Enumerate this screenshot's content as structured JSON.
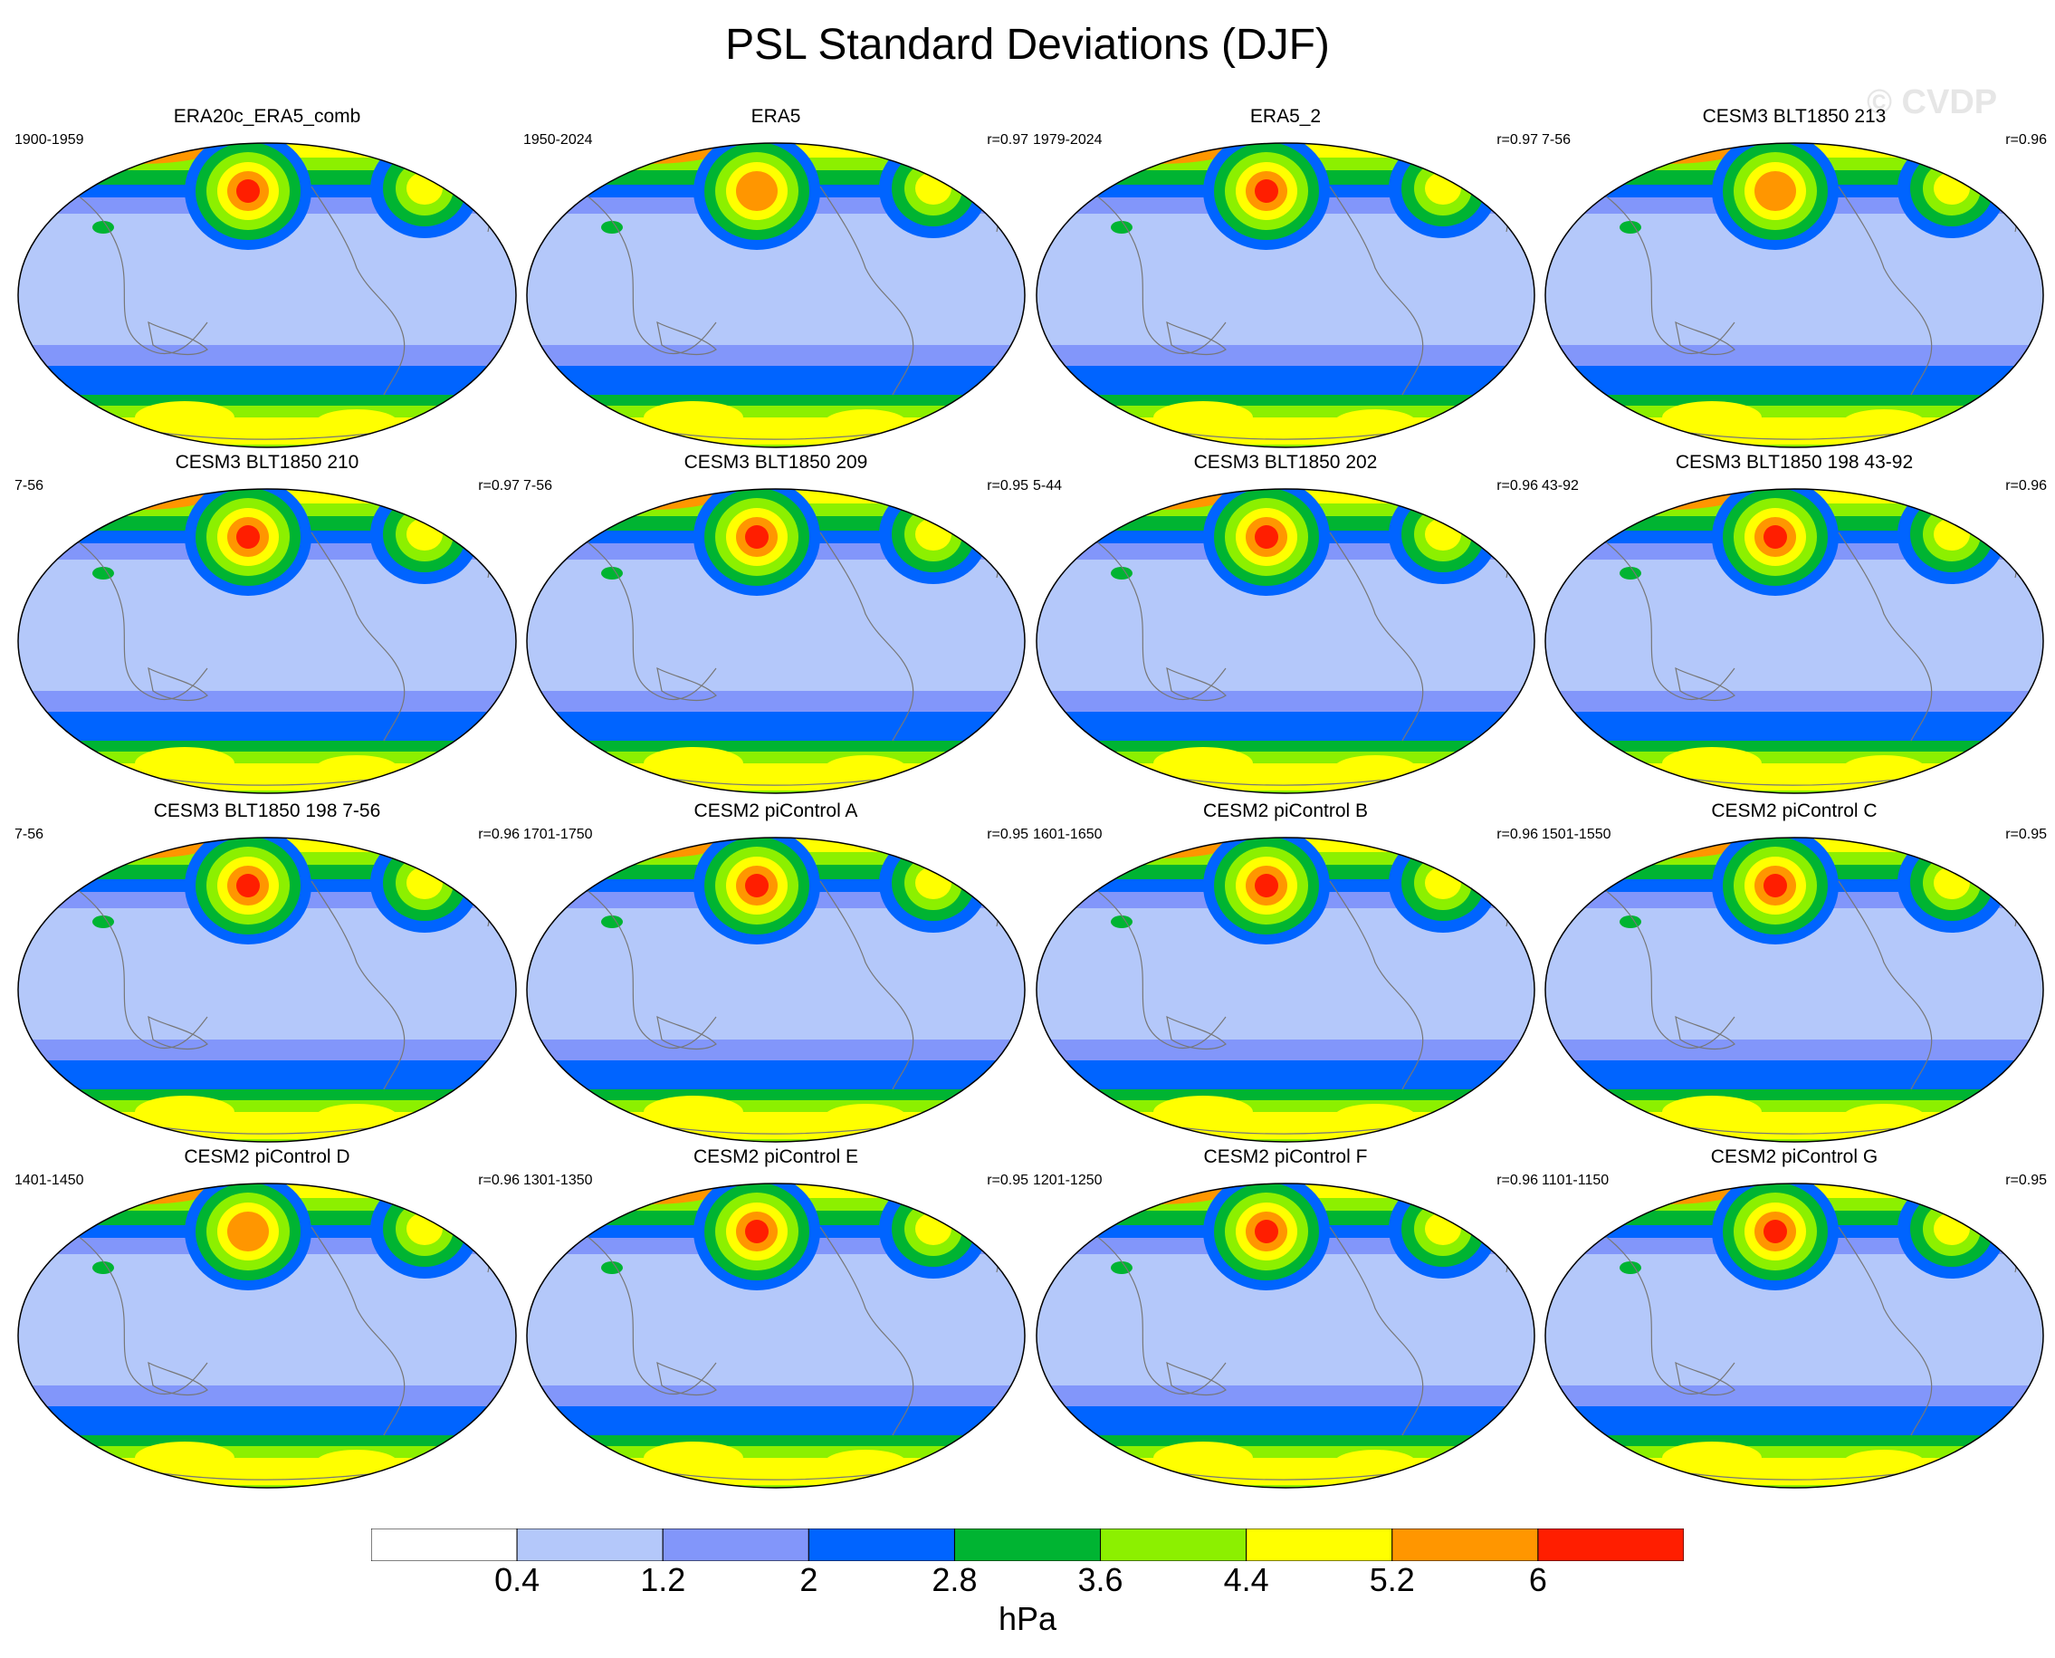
{
  "title": "PSL Standard Deviations (DJF)",
  "watermark": "© CVDP",
  "palette": [
    "#ffffff",
    "#b4c8fa",
    "#8296fa",
    "#0064ff",
    "#00b432",
    "#8cf000",
    "#ffff00",
    "#ff9600",
    "#ff1e00"
  ],
  "colorbar": {
    "levels": [
      "0.4",
      "1.2",
      "2",
      "2.8",
      "3.6",
      "4.4",
      "5.2",
      "6"
    ],
    "units": "hPa"
  },
  "panels": [
    {
      "title": "ERA20c_ERA5_comb",
      "period": "1900-1959",
      "corr": "",
      "aleut_peak": 6
    },
    {
      "title": "ERA5",
      "period": "1950-2024",
      "corr": "r=0.97",
      "aleut_peak": 5.5
    },
    {
      "title": "ERA5_2",
      "period": "1979-2024",
      "corr": "r=0.97",
      "aleut_peak": 6
    },
    {
      "title": "CESM3 BLT1850 213",
      "period": "7-56",
      "corr": "r=0.96",
      "aleut_peak": 5.5
    },
    {
      "title": "CESM3 BLT1850 210",
      "period": "7-56",
      "corr": "r=0.97",
      "aleut_peak": 6.5
    },
    {
      "title": "CESM3 BLT1850 209",
      "period": "7-56",
      "corr": "r=0.95",
      "aleut_peak": 6.5
    },
    {
      "title": "CESM3 BLT1850 202",
      "period": "5-44",
      "corr": "r=0.96",
      "aleut_peak": 7
    },
    {
      "title": "CESM3 BLT1850 198 43-92",
      "period": "43-92",
      "corr": "r=0.96",
      "aleut_peak": 7
    },
    {
      "title": "CESM3 BLT1850 198 7-56",
      "period": "7-56",
      "corr": "r=0.96",
      "aleut_peak": 6.5
    },
    {
      "title": "CESM2 piControl A",
      "period": "1701-1750",
      "corr": "r=0.95",
      "aleut_peak": 7
    },
    {
      "title": "CESM2 piControl B",
      "period": "1601-1650",
      "corr": "r=0.96",
      "aleut_peak": 6.5
    },
    {
      "title": "CESM2 piControl C",
      "period": "1501-1550",
      "corr": "r=0.95",
      "aleut_peak": 6.5
    },
    {
      "title": "CESM2 piControl D",
      "period": "1401-1450",
      "corr": "r=0.96",
      "aleut_peak": 5.5
    },
    {
      "title": "CESM2 piControl E",
      "period": "1301-1350",
      "corr": "r=0.95",
      "aleut_peak": 6.5
    },
    {
      "title": "CESM2 piControl F",
      "period": "1201-1250",
      "corr": "r=0.96",
      "aleut_peak": 7
    },
    {
      "title": "CESM2 piControl G",
      "period": "1101-1150",
      "corr": "r=0.95",
      "aleut_peak": 7
    }
  ]
}
